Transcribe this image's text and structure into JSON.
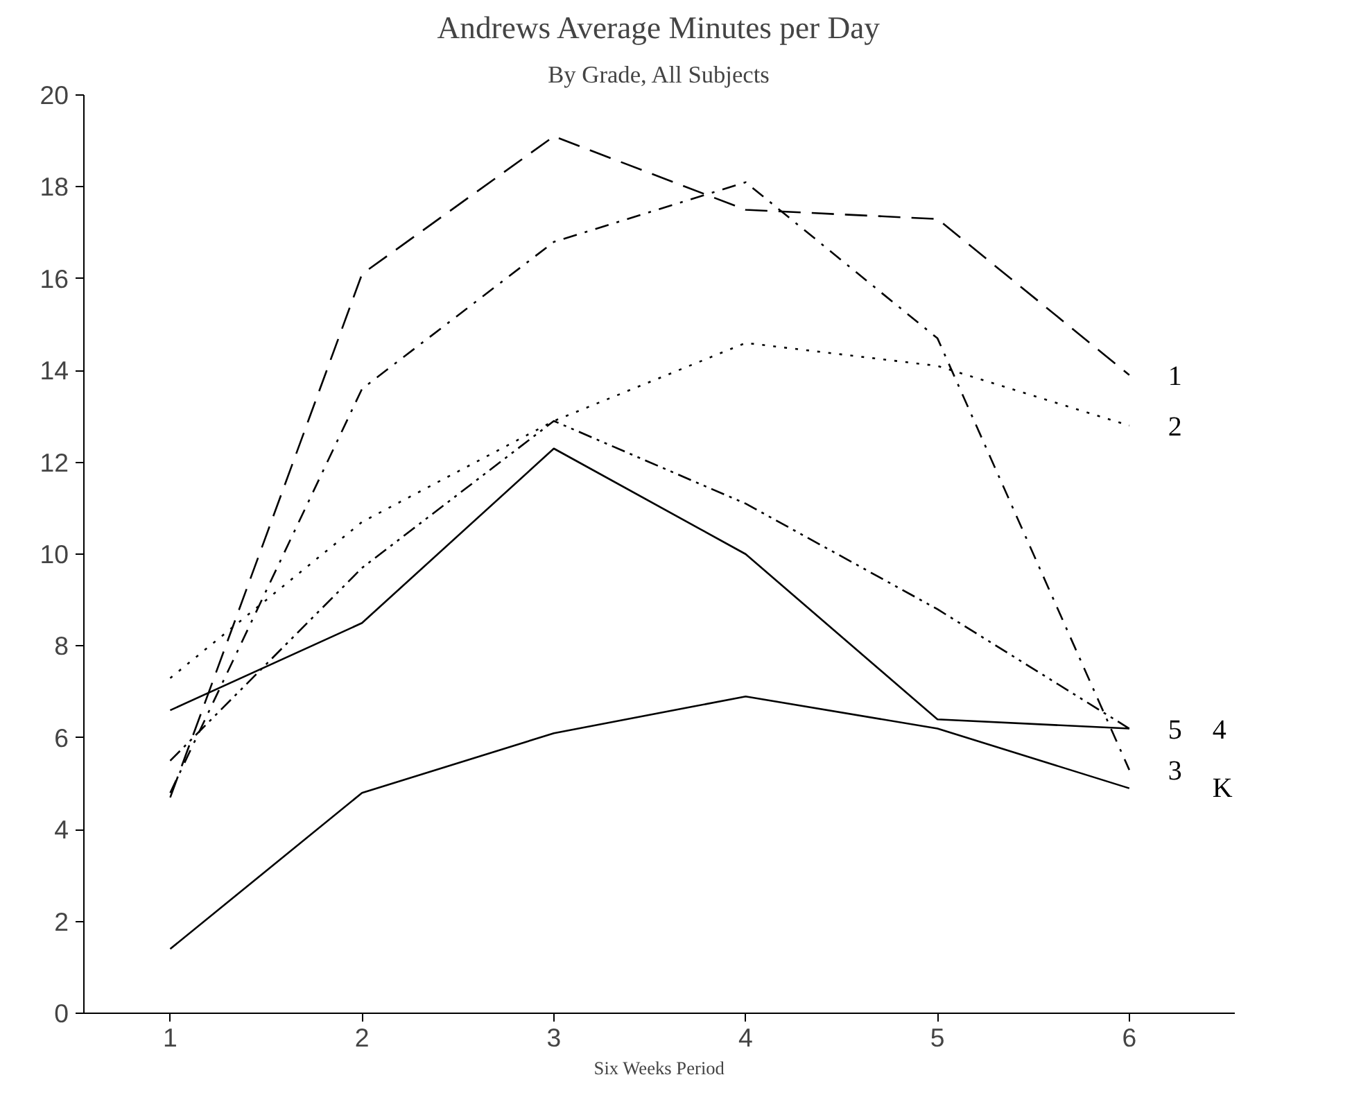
{
  "chart_data": {
    "type": "line",
    "title": "Andrews Average Minutes per Day",
    "subtitle": "By Grade, All Subjects",
    "xlabel": "Six Weeks Period",
    "x": [
      1,
      2,
      3,
      4,
      5,
      6
    ],
    "xlim": [
      0.55,
      6.55
    ],
    "xticks": [
      1,
      2,
      3,
      4,
      5,
      6
    ],
    "ylim": [
      0,
      20
    ],
    "yticks": [
      0,
      2,
      4,
      6,
      8,
      10,
      12,
      14,
      16,
      18,
      20
    ],
    "grid": false,
    "marker": "none",
    "series": [
      {
        "name": "1",
        "color": "#000000",
        "line_style": "dashed",
        "values": [
          4.7,
          16.1,
          19.1,
          17.5,
          17.3,
          13.9
        ]
      },
      {
        "name": "2",
        "color": "#000000",
        "line_style": "dotted",
        "values": [
          7.3,
          10.7,
          12.9,
          14.6,
          14.1,
          12.8
        ]
      },
      {
        "name": "3",
        "color": "#000000",
        "line_style": "dashdot",
        "values": [
          4.8,
          13.6,
          16.8,
          18.1,
          14.7,
          5.3
        ]
      },
      {
        "name": "5",
        "color": "#000000",
        "line_style": "dashdotdot",
        "values": [
          5.5,
          9.7,
          12.9,
          11.1,
          8.8,
          6.2
        ]
      },
      {
        "name": "4",
        "color": "#000000",
        "line_style": "solid",
        "values": [
          6.6,
          8.5,
          12.3,
          10.0,
          6.4,
          6.2
        ]
      },
      {
        "name": "K",
        "color": "#000000",
        "line_style": "solid",
        "values": [
          1.4,
          4.8,
          6.1,
          6.9,
          6.2,
          4.9
        ]
      }
    ]
  }
}
